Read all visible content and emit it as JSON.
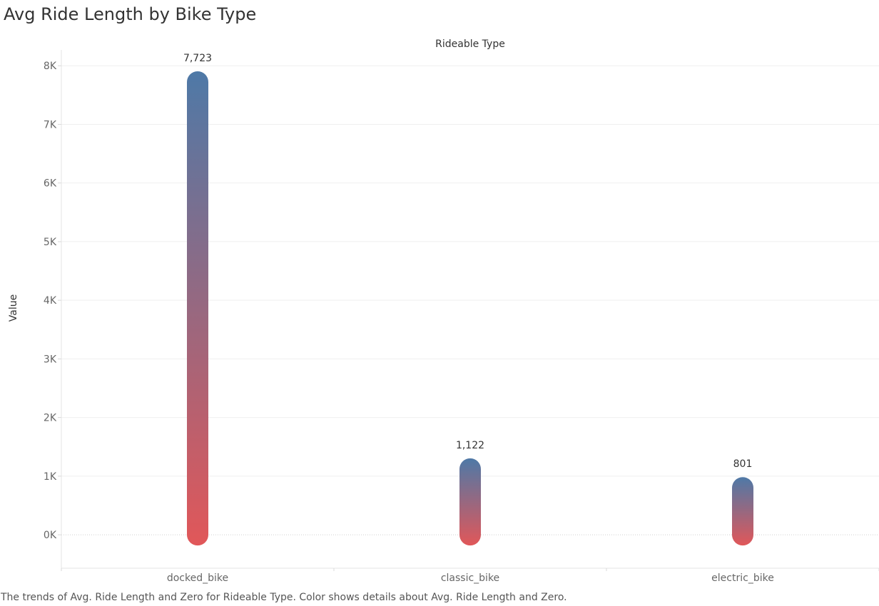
{
  "chart_data": {
    "type": "bar",
    "title": "Avg Ride Length by Bike Type",
    "column_header": "Rideable Type",
    "xlabel": "",
    "ylabel": "Value",
    "ylim": [
      -570,
      8270
    ],
    "y_ticks": [
      0,
      1000,
      2000,
      3000,
      4000,
      5000,
      6000,
      7000,
      8000
    ],
    "y_tick_labels": [
      "0K",
      "1K",
      "2K",
      "3K",
      "4K",
      "5K",
      "6K",
      "7K",
      "8K"
    ],
    "categories": [
      "docked_bike",
      "classic_bike",
      "electric_bike"
    ],
    "values": [
      7723,
      1122,
      801
    ],
    "data_labels": [
      "7,723",
      "1,122",
      "801"
    ],
    "grid": true,
    "legend": "none",
    "caption": "The trends of Avg. Ride Length and Zero for Rideable Type.  Color shows details about Avg. Ride Length and Zero.",
    "colors": {
      "bar_top": "#4E79A7",
      "bar_bottom": "#E15759",
      "grid": "#EFEFEF",
      "zero_line": "#CFCFCF",
      "axis_text": "#666666",
      "label_text": "#333333"
    }
  }
}
